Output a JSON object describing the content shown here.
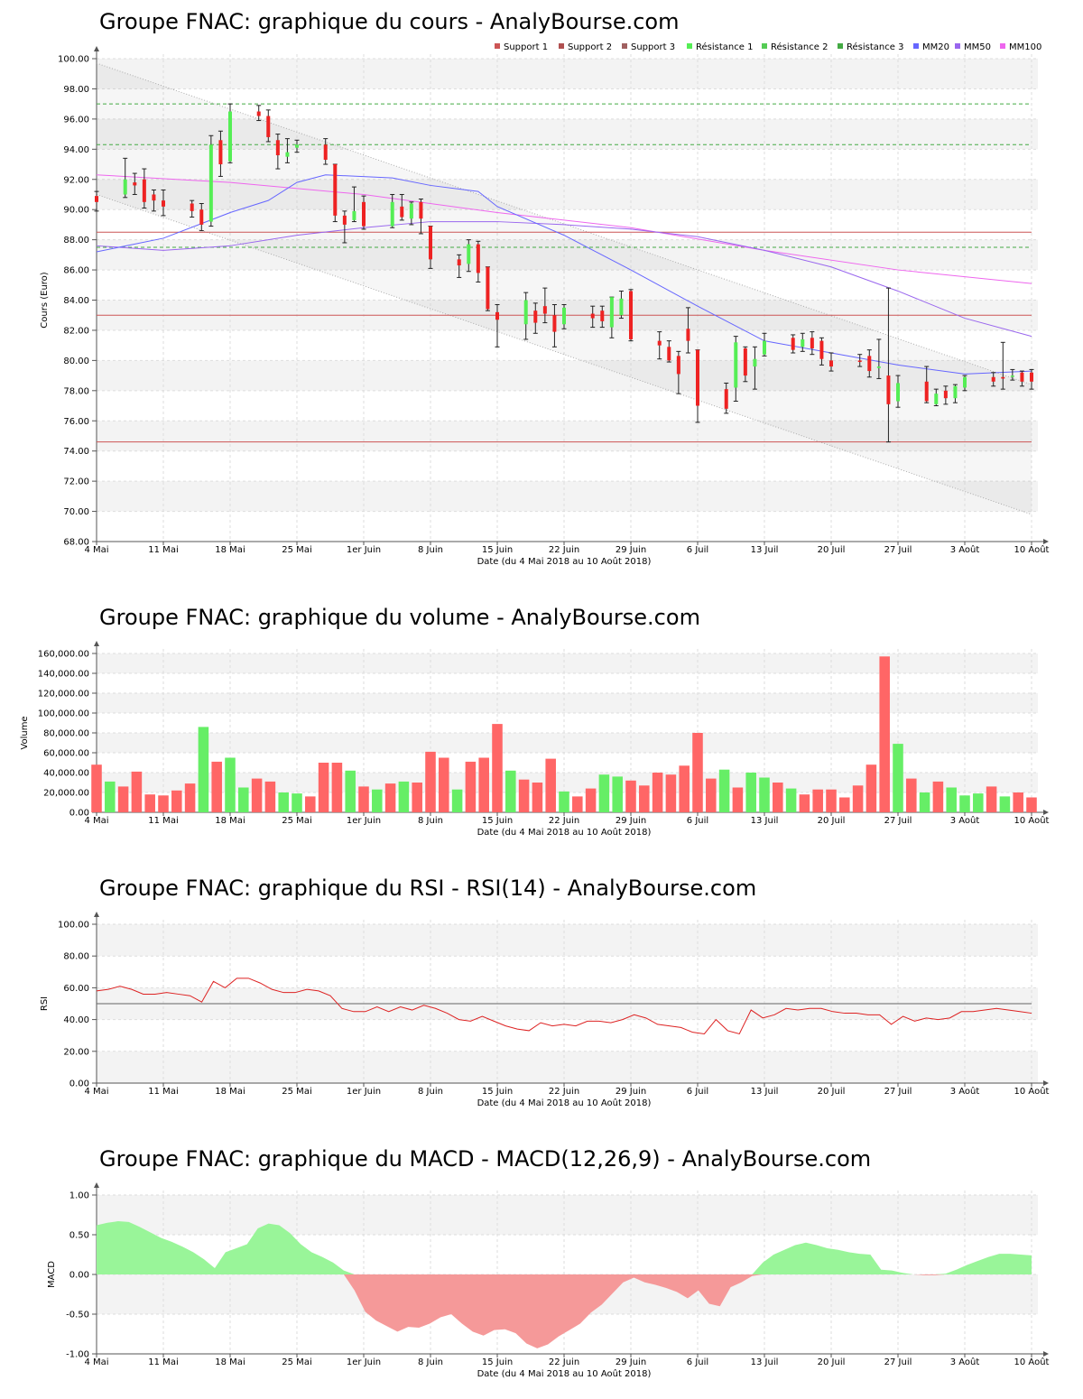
{
  "colors": {
    "up": "#55ee55",
    "down": "#ee2222",
    "volume_up": "#66ee66",
    "volume_down": "#ff6666",
    "support": "#cc5555",
    "resistance": "#44aa44",
    "mm20": "#6666ff",
    "mm50": "#9966ee",
    "mm100": "#ee66ee",
    "rsi_line": "#dd2222",
    "macd_pos": "#99f599",
    "macd_neg": "#f59999",
    "band": "#f3f3f3"
  },
  "x_axis": {
    "label": "Date (du 4 Mai 2018 au 10 Août 2018)",
    "ticks": [
      "4 Mai",
      "11 Mai",
      "18 Mai",
      "25 Mai",
      "1er Juin",
      "8 Juin",
      "15 Juin",
      "22 Juin",
      "29 Juin",
      "6 Juil",
      "13 Juil",
      "20 Juil",
      "27 Juil",
      "3 Août",
      "10 Août"
    ]
  },
  "price": {
    "title": "Groupe FNAC: graphique du cours - AnalyBourse.com",
    "ylabel": "Cours (Euro)",
    "yticks": [
      "100.00",
      "98.00",
      "96.00",
      "94.00",
      "92.00",
      "90.00",
      "88.00",
      "86.00",
      "84.00",
      "82.00",
      "80.00",
      "78.00",
      "76.00",
      "74.00",
      "72.00",
      "70.00",
      "68.00"
    ],
    "legend": [
      "Support 1",
      "Support 2",
      "Support 3",
      "Résistance 1",
      "Résistance 2",
      "Résistance 3",
      "MM20",
      "MM50",
      "MM100"
    ]
  },
  "volume": {
    "title": "Groupe FNAC: graphique du volume - AnalyBourse.com",
    "ylabel": "Volume",
    "yticks": [
      "160,000.00",
      "140,000.00",
      "120,000.00",
      "100,000.00",
      "80,000.00",
      "60,000.00",
      "40,000.00",
      "20,000.00",
      "0.00"
    ]
  },
  "rsi": {
    "title": "Groupe FNAC: graphique du RSI - RSI(14) - AnalyBourse.com",
    "ylabel": "RSI",
    "yticks": [
      "100.00",
      "80.00",
      "60.00",
      "40.00",
      "20.00",
      "0.00"
    ]
  },
  "macd": {
    "title": "Groupe FNAC: graphique du MACD - MACD(12,26,9) - AnalyBourse.com",
    "ylabel": "MACD",
    "yticks": [
      "1.00",
      "0.50",
      "0.00",
      "-0.50",
      "-1.00"
    ]
  },
  "chart_data": [
    {
      "type": "candlestick",
      "title": "Groupe FNAC: graphique du cours - AnalyBourse.com",
      "ylabel": "Cours (Euro)",
      "xlabel": "Date (du 4 Mai 2018 au 10 Août 2018)",
      "ylim": [
        68,
        100
      ],
      "x_start": "2018-05-04",
      "x_end": "2018-08-10",
      "candles": [
        {
          "d": "2018-05-04",
          "o": 90.9,
          "h": 91.2,
          "l": 89.9,
          "c": 90.5
        },
        {
          "d": "2018-05-07",
          "o": 91.0,
          "h": 93.4,
          "l": 90.8,
          "c": 92.0
        },
        {
          "d": "2018-05-08",
          "o": 91.8,
          "h": 92.4,
          "l": 91.0,
          "c": 91.6
        },
        {
          "d": "2018-05-09",
          "o": 92.0,
          "h": 92.7,
          "l": 90.1,
          "c": 90.5
        },
        {
          "d": "2018-05-10",
          "o": 91.0,
          "h": 91.3,
          "l": 89.9,
          "c": 90.6
        },
        {
          "d": "2018-05-11",
          "o": 90.6,
          "h": 91.3,
          "l": 89.6,
          "c": 90.2
        },
        {
          "d": "2018-05-14",
          "o": 90.4,
          "h": 90.6,
          "l": 89.5,
          "c": 89.9
        },
        {
          "d": "2018-05-15",
          "o": 90.0,
          "h": 90.4,
          "l": 88.6,
          "c": 89.0
        },
        {
          "d": "2018-05-16",
          "o": 89.2,
          "h": 94.9,
          "l": 88.9,
          "c": 94.3
        },
        {
          "d": "2018-05-17",
          "o": 94.6,
          "h": 95.2,
          "l": 92.2,
          "c": 93.0
        },
        {
          "d": "2018-05-18",
          "o": 93.2,
          "h": 97.0,
          "l": 93.1,
          "c": 96.5
        },
        {
          "d": "2018-05-21",
          "o": 96.5,
          "h": 96.9,
          "l": 95.9,
          "c": 96.2
        },
        {
          "d": "2018-05-22",
          "o": 96.2,
          "h": 96.6,
          "l": 94.5,
          "c": 94.8
        },
        {
          "d": "2018-05-23",
          "o": 94.6,
          "h": 95.0,
          "l": 92.7,
          "c": 93.6
        },
        {
          "d": "2018-05-24",
          "o": 93.5,
          "h": 94.7,
          "l": 93.1,
          "c": 93.8
        },
        {
          "d": "2018-05-25",
          "o": 94.1,
          "h": 94.6,
          "l": 93.8,
          "c": 94.3
        },
        {
          "d": "2018-05-28",
          "o": 94.3,
          "h": 94.7,
          "l": 93.0,
          "c": 93.3
        },
        {
          "d": "2018-05-29",
          "o": 93.0,
          "h": 93.0,
          "l": 89.2,
          "c": 89.6
        },
        {
          "d": "2018-05-30",
          "o": 89.6,
          "h": 89.9,
          "l": 87.8,
          "c": 89.0
        },
        {
          "d": "2018-05-31",
          "o": 89.3,
          "h": 91.5,
          "l": 89.2,
          "c": 89.9
        },
        {
          "d": "2018-06-01",
          "o": 90.5,
          "h": 90.9,
          "l": 88.7,
          "c": 88.9
        },
        {
          "d": "2018-06-04",
          "o": 88.9,
          "h": 91.0,
          "l": 88.8,
          "c": 90.5
        },
        {
          "d": "2018-06-05",
          "o": 90.2,
          "h": 91.0,
          "l": 89.3,
          "c": 89.5
        },
        {
          "d": "2018-06-06",
          "o": 89.4,
          "h": 90.5,
          "l": 89.0,
          "c": 90.4
        },
        {
          "d": "2018-06-07",
          "o": 90.5,
          "h": 90.7,
          "l": 88.4,
          "c": 89.4
        },
        {
          "d": "2018-06-08",
          "o": 88.9,
          "h": 88.9,
          "l": 86.1,
          "c": 86.7
        },
        {
          "d": "2018-06-11",
          "o": 86.7,
          "h": 87.0,
          "l": 85.5,
          "c": 86.3
        },
        {
          "d": "2018-06-12",
          "o": 86.4,
          "h": 88.0,
          "l": 85.9,
          "c": 87.7
        },
        {
          "d": "2018-06-13",
          "o": 87.7,
          "h": 87.9,
          "l": 85.2,
          "c": 85.8
        },
        {
          "d": "2018-06-14",
          "o": 86.2,
          "h": 86.2,
          "l": 83.3,
          "c": 83.4
        },
        {
          "d": "2018-06-15",
          "o": 83.2,
          "h": 83.7,
          "l": 80.9,
          "c": 82.7
        },
        {
          "d": "2018-06-18",
          "o": 82.4,
          "h": 84.5,
          "l": 81.4,
          "c": 84.0
        },
        {
          "d": "2018-06-19",
          "o": 83.3,
          "h": 83.8,
          "l": 81.8,
          "c": 82.5
        },
        {
          "d": "2018-06-20",
          "o": 83.6,
          "h": 84.8,
          "l": 82.5,
          "c": 83.1
        },
        {
          "d": "2018-06-21",
          "o": 83.0,
          "h": 83.7,
          "l": 80.9,
          "c": 81.9
        },
        {
          "d": "2018-06-22",
          "o": 82.4,
          "h": 83.7,
          "l": 82.1,
          "c": 83.5
        },
        {
          "d": "2018-06-25",
          "o": 83.1,
          "h": 83.6,
          "l": 82.2,
          "c": 82.8
        },
        {
          "d": "2018-06-26",
          "o": 83.3,
          "h": 83.6,
          "l": 82.2,
          "c": 82.6
        },
        {
          "d": "2018-06-27",
          "o": 82.2,
          "h": 84.2,
          "l": 81.5,
          "c": 84.2
        },
        {
          "d": "2018-06-28",
          "o": 83.0,
          "h": 84.6,
          "l": 82.8,
          "c": 84.1
        },
        {
          "d": "2018-06-29",
          "o": 84.6,
          "h": 84.7,
          "l": 81.3,
          "c": 81.4
        },
        {
          "d": "2018-07-02",
          "o": 81.3,
          "h": 81.9,
          "l": 80.1,
          "c": 81.0
        },
        {
          "d": "2018-07-03",
          "o": 80.9,
          "h": 81.3,
          "l": 79.9,
          "c": 80.0
        },
        {
          "d": "2018-07-04",
          "o": 80.3,
          "h": 80.6,
          "l": 77.8,
          "c": 79.1
        },
        {
          "d": "2018-07-05",
          "o": 82.1,
          "h": 83.5,
          "l": 80.5,
          "c": 81.3
        },
        {
          "d": "2018-07-06",
          "o": 80.7,
          "h": 80.7,
          "l": 75.9,
          "c": 77.0
        },
        {
          "d": "2018-07-09",
          "o": 78.1,
          "h": 78.5,
          "l": 76.5,
          "c": 76.8
        },
        {
          "d": "2018-07-10",
          "o": 78.2,
          "h": 81.6,
          "l": 77.3,
          "c": 81.2
        },
        {
          "d": "2018-07-11",
          "o": 80.8,
          "h": 80.9,
          "l": 78.6,
          "c": 79.0
        },
        {
          "d": "2018-07-12",
          "o": 79.6,
          "h": 80.9,
          "l": 78.1,
          "c": 80.1
        },
        {
          "d": "2018-07-13",
          "o": 80.4,
          "h": 81.8,
          "l": 80.3,
          "c": 81.3
        },
        {
          "d": "2018-07-16",
          "o": 81.5,
          "h": 81.7,
          "l": 80.5,
          "c": 80.7
        },
        {
          "d": "2018-07-17",
          "o": 80.9,
          "h": 81.8,
          "l": 80.6,
          "c": 81.4
        },
        {
          "d": "2018-07-18",
          "o": 81.5,
          "h": 81.9,
          "l": 80.4,
          "c": 80.8
        },
        {
          "d": "2018-07-19",
          "o": 81.3,
          "h": 81.5,
          "l": 79.7,
          "c": 80.1
        },
        {
          "d": "2018-07-20",
          "o": 80.0,
          "h": 80.5,
          "l": 79.3,
          "c": 79.6
        },
        {
          "d": "2018-07-23",
          "o": 80.0,
          "h": 80.4,
          "l": 79.6,
          "c": 79.9
        },
        {
          "d": "2018-07-24",
          "o": 80.3,
          "h": 80.7,
          "l": 78.9,
          "c": 79.3
        },
        {
          "d": "2018-07-25",
          "o": 79.5,
          "h": 81.4,
          "l": 78.8,
          "c": 79.6
        },
        {
          "d": "2018-07-26",
          "o": 79.0,
          "h": 84.8,
          "l": 74.6,
          "c": 77.1
        },
        {
          "d": "2018-07-27",
          "o": 77.3,
          "h": 79.0,
          "l": 76.9,
          "c": 78.5
        },
        {
          "d": "2018-07-30",
          "o": 78.6,
          "h": 79.6,
          "l": 77.2,
          "c": 77.3
        },
        {
          "d": "2018-07-31",
          "o": 77.1,
          "h": 78.1,
          "l": 77.0,
          "c": 77.8
        },
        {
          "d": "2018-08-01",
          "o": 78.0,
          "h": 78.3,
          "l": 77.1,
          "c": 77.5
        },
        {
          "d": "2018-08-02",
          "o": 77.5,
          "h": 78.4,
          "l": 77.2,
          "c": 78.3
        },
        {
          "d": "2018-08-03",
          "o": 78.2,
          "h": 79.0,
          "l": 78.0,
          "c": 78.9
        },
        {
          "d": "2018-08-06",
          "o": 78.9,
          "h": 79.2,
          "l": 78.3,
          "c": 78.6
        },
        {
          "d": "2018-08-07",
          "o": 78.9,
          "h": 81.2,
          "l": 78.1,
          "c": 78.8
        },
        {
          "d": "2018-08-08",
          "o": 79.0,
          "h": 79.4,
          "l": 78.7,
          "c": 79.0
        },
        {
          "d": "2018-08-09",
          "o": 79.2,
          "h": 79.3,
          "l": 78.3,
          "c": 78.6
        },
        {
          "d": "2018-08-10",
          "o": 79.2,
          "h": 79.4,
          "l": 78.1,
          "c": 78.6
        }
      ],
      "supports": [
        83.0,
        88.5,
        74.6
      ],
      "resistances": [
        87.5,
        94.3,
        97.0
      ],
      "trend_channel": {
        "upper": [
          [
            "2018-05-04",
            99.7
          ],
          [
            "2018-08-10",
            78.4
          ]
        ],
        "lower": [
          [
            "2018-05-04",
            91.0
          ],
          [
            "2018-08-10",
            69.8
          ]
        ]
      },
      "mm20": [
        [
          "2018-05-04",
          87.2
        ],
        [
          "2018-05-11",
          88.1
        ],
        [
          "2018-05-18",
          89.8
        ],
        [
          "2018-05-22",
          90.6
        ],
        [
          "2018-05-25",
          91.8
        ],
        [
          "2018-05-28",
          92.3
        ],
        [
          "2018-06-04",
          92.1
        ],
        [
          "2018-06-08",
          91.6
        ],
        [
          "2018-06-13",
          91.2
        ],
        [
          "2018-06-15",
          90.2
        ],
        [
          "2018-06-22",
          88.3
        ],
        [
          "2018-06-29",
          86.0
        ],
        [
          "2018-07-06",
          83.6
        ],
        [
          "2018-07-13",
          81.3
        ],
        [
          "2018-07-20",
          80.5
        ],
        [
          "2018-07-27",
          79.7
        ],
        [
          "2018-08-03",
          79.1
        ],
        [
          "2018-08-10",
          79.3
        ]
      ],
      "mm50": [
        [
          "2018-05-04",
          87.6
        ],
        [
          "2018-05-11",
          87.3
        ],
        [
          "2018-05-18",
          87.6
        ],
        [
          "2018-05-25",
          88.3
        ],
        [
          "2018-06-01",
          88.8
        ],
        [
          "2018-06-08",
          89.2
        ],
        [
          "2018-06-15",
          89.2
        ],
        [
          "2018-06-22",
          89.0
        ],
        [
          "2018-06-29",
          88.7
        ],
        [
          "2018-07-06",
          88.2
        ],
        [
          "2018-07-13",
          87.3
        ],
        [
          "2018-07-20",
          86.2
        ],
        [
          "2018-07-27",
          84.6
        ],
        [
          "2018-08-03",
          82.8
        ],
        [
          "2018-08-10",
          81.6
        ]
      ],
      "mm100": [
        [
          "2018-05-04",
          92.3
        ],
        [
          "2018-05-18",
          91.8
        ],
        [
          "2018-06-01",
          91.0
        ],
        [
          "2018-06-15",
          89.8
        ],
        [
          "2018-06-29",
          88.8
        ],
        [
          "2018-07-13",
          87.3
        ],
        [
          "2018-07-27",
          86.0
        ],
        [
          "2018-08-10",
          85.1
        ]
      ]
    },
    {
      "type": "bar",
      "title": "Groupe FNAC: graphique du volume - AnalyBourse.com",
      "ylabel": "Volume",
      "ylim": [
        0,
        160000
      ],
      "values": [
        48000,
        31000,
        26000,
        41000,
        18000,
        17000,
        22000,
        29000,
        86000,
        51000,
        55000,
        25000,
        34000,
        31000,
        20000,
        19000,
        16000,
        50000,
        50000,
        42000,
        26000,
        23000,
        29000,
        31000,
        30000,
        61000,
        55000,
        23000,
        51000,
        55000,
        89000,
        42000,
        33000,
        30000,
        54000,
        21000,
        16000,
        24000,
        38000,
        36000,
        32000,
        27000,
        40000,
        38000,
        47000,
        80000,
        34000,
        43000,
        25000,
        40000,
        35000,
        30000,
        24000,
        18000,
        23000,
        23000,
        15000,
        27000,
        48000,
        157000,
        69000,
        34000,
        20000,
        31000,
        25000,
        17000,
        19000,
        26000,
        16000,
        20000,
        15000
      ],
      "colors": [
        "down",
        "up",
        "down",
        "down",
        "down",
        "down",
        "down",
        "down",
        "up",
        "down",
        "up",
        "up",
        "down",
        "down",
        "up",
        "up",
        "down",
        "down",
        "down",
        "up",
        "down",
        "up",
        "down",
        "up",
        "down",
        "down",
        "down",
        "up",
        "down",
        "down",
        "down",
        "up",
        "down",
        "down",
        "down",
        "up",
        "down",
        "down",
        "up",
        "up",
        "down",
        "down",
        "down",
        "down",
        "down",
        "down",
        "down",
        "up",
        "down",
        "up",
        "up",
        "down",
        "up",
        "down",
        "down",
        "down",
        "down",
        "down",
        "down",
        "down",
        "up",
        "down",
        "up",
        "down",
        "up",
        "up",
        "up",
        "down",
        "up",
        "down",
        "down"
      ]
    },
    {
      "type": "line",
      "title": "Groupe FNAC: graphique du RSI - RSI(14) - AnalyBourse.com",
      "ylabel": "RSI",
      "ylim": [
        0,
        100
      ],
      "reference": 50,
      "values": [
        58,
        59,
        61,
        59,
        56,
        56,
        57,
        56,
        55,
        51,
        64,
        60,
        66,
        66,
        63,
        59,
        57,
        57,
        59,
        58,
        55,
        47,
        45,
        45,
        48,
        45,
        48,
        46,
        49,
        47,
        44,
        40,
        39,
        42,
        39,
        36,
        34,
        33,
        38,
        36,
        37,
        36,
        39,
        39,
        38,
        40,
        43,
        41,
        37,
        36,
        35,
        32,
        31,
        40,
        33,
        31,
        46,
        41,
        43,
        47,
        46,
        47,
        47,
        45,
        44,
        44,
        43,
        43,
        37,
        42,
        39,
        41,
        40,
        41,
        45,
        45,
        46,
        47,
        46,
        45,
        44
      ]
    },
    {
      "type": "area",
      "title": "Groupe FNAC: graphique du MACD - MACD(12,26,9) - AnalyBourse.com",
      "ylabel": "MACD",
      "ylim": [
        -1,
        1
      ],
      "values": [
        0.62,
        0.65,
        0.67,
        0.66,
        0.6,
        0.53,
        0.46,
        0.41,
        0.35,
        0.28,
        0.19,
        0.08,
        0.28,
        0.33,
        0.38,
        0.58,
        0.64,
        0.62,
        0.52,
        0.38,
        0.28,
        0.22,
        0.15,
        0.05,
        -0.2,
        -0.47,
        -0.58,
        -0.65,
        -0.72,
        -0.66,
        -0.67,
        -0.62,
        -0.54,
        -0.5,
        -0.62,
        -0.72,
        -0.77,
        -0.7,
        -0.69,
        -0.74,
        -0.87,
        -0.93,
        -0.88,
        -0.78,
        -0.7,
        -0.62,
        -0.48,
        -0.38,
        -0.24,
        -0.1,
        -0.04,
        -0.1,
        -0.13,
        -0.17,
        -0.22,
        -0.3,
        -0.2,
        -0.37,
        -0.4,
        -0.16,
        -0.1,
        -0.02,
        0.15,
        0.25,
        0.31,
        0.37,
        0.4,
        0.37,
        0.33,
        0.31,
        0.28,
        0.26,
        0.25,
        0.06,
        0.05,
        0.02,
        0.0,
        -0.01,
        -0.01,
        0.01,
        0.06,
        0.12,
        0.17,
        0.22,
        0.26,
        0.26,
        0.25,
        0.24
      ]
    }
  ]
}
